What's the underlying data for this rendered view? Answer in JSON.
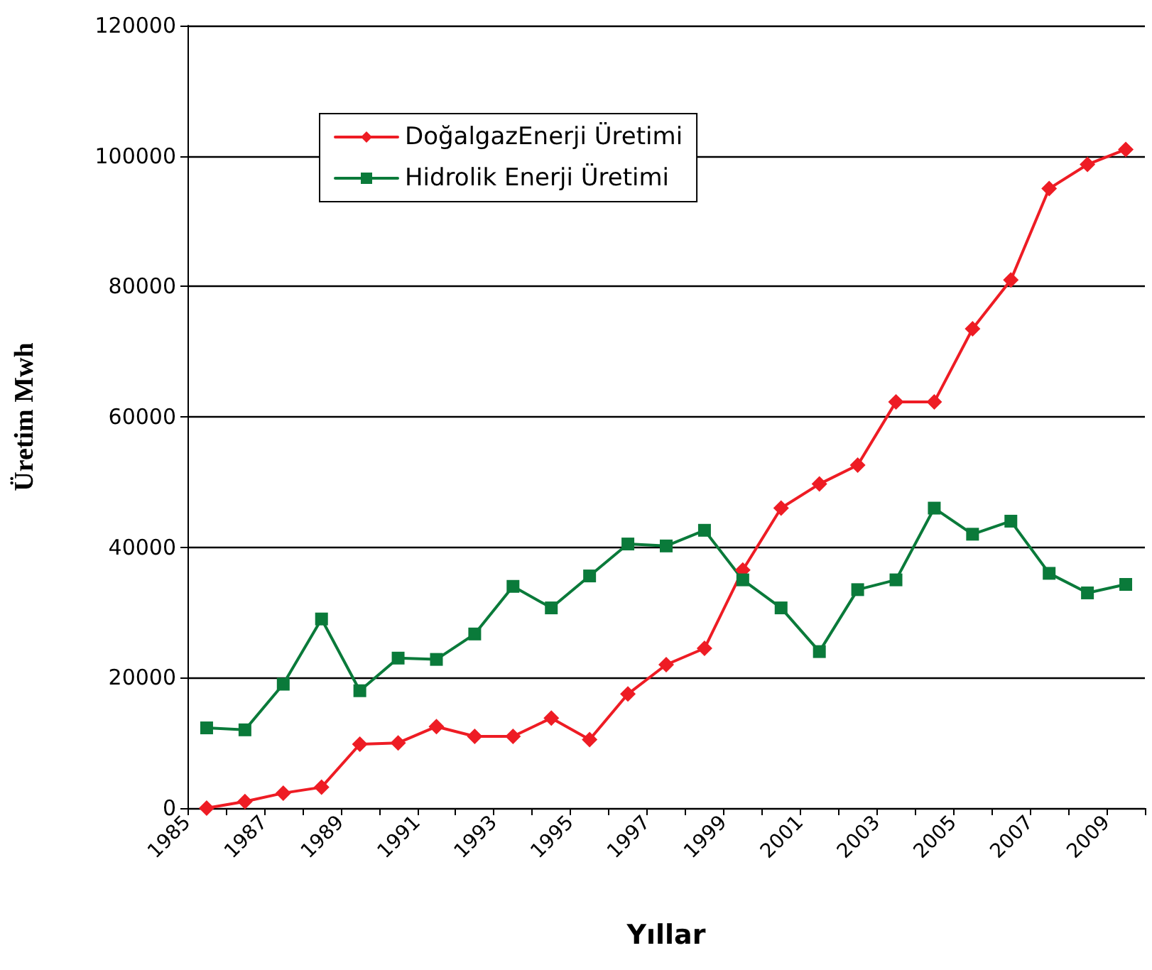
{
  "chart_data": {
    "type": "line",
    "xlabel": "Yıllar",
    "ylabel": "Üretim Mwh",
    "x": [
      1985.5,
      1986.5,
      1987.5,
      1988.5,
      1989.5,
      1990.5,
      1991.5,
      1992.5,
      1993.5,
      1994.5,
      1995.5,
      1996.5,
      1997.5,
      1998.5,
      1999.5,
      2000.5,
      2001.5,
      2002.5,
      2003.5,
      2004.5,
      2005.5,
      2006.5,
      2007.5,
      2008.5,
      2009.5
    ],
    "series": [
      {
        "name": "DoğalgazEnerji Üretimi",
        "color": "#ee1c24",
        "marker": "diamond",
        "values": [
          0,
          1000,
          2300,
          3200,
          9800,
          10000,
          12500,
          11000,
          11000,
          13800,
          10500,
          17500,
          22000,
          24500,
          36500,
          46000,
          49700,
          52600,
          62300,
          62300,
          73500,
          81000,
          95000,
          98700,
          101000
        ]
      },
      {
        "name": "Hidrolik Enerji Üretimi",
        "color": "#0a7a3a",
        "marker": "square",
        "values": [
          12300,
          12000,
          19000,
          29000,
          18000,
          23000,
          22800,
          26700,
          34000,
          30700,
          35600,
          40500,
          40200,
          42600,
          35000,
          30700,
          24000,
          33500,
          35000,
          46000,
          42000,
          44000,
          36000,
          33000,
          34300
        ]
      }
    ],
    "xlim": [
      1985,
      2010
    ],
    "xticks": [
      1985,
      {
        "value": 1986,
        "label": null
      },
      1987,
      {
        "value": 1988,
        "label": null
      },
      1989,
      {
        "value": 1990,
        "label": null
      },
      1991,
      {
        "value": 1992,
        "label": null
      },
      1993,
      {
        "value": 1994,
        "label": null
      },
      1995,
      {
        "value": 1996,
        "label": null
      },
      1997,
      {
        "value": 1998,
        "label": null
      },
      1999,
      {
        "value": 2000,
        "label": null
      },
      2001,
      {
        "value": 2002,
        "label": null
      },
      2003,
      {
        "value": 2004,
        "label": null
      },
      2005,
      {
        "value": 2006,
        "label": null
      },
      2007,
      {
        "value": 2008,
        "label": null
      },
      2009,
      {
        "value": 2010,
        "label": null
      }
    ],
    "ylim": [
      0,
      120000
    ],
    "yticks": [
      0,
      20000,
      40000,
      60000,
      80000,
      100000,
      120000
    ],
    "grid": "y",
    "legend": "top left",
    "line_style": "solid"
  }
}
